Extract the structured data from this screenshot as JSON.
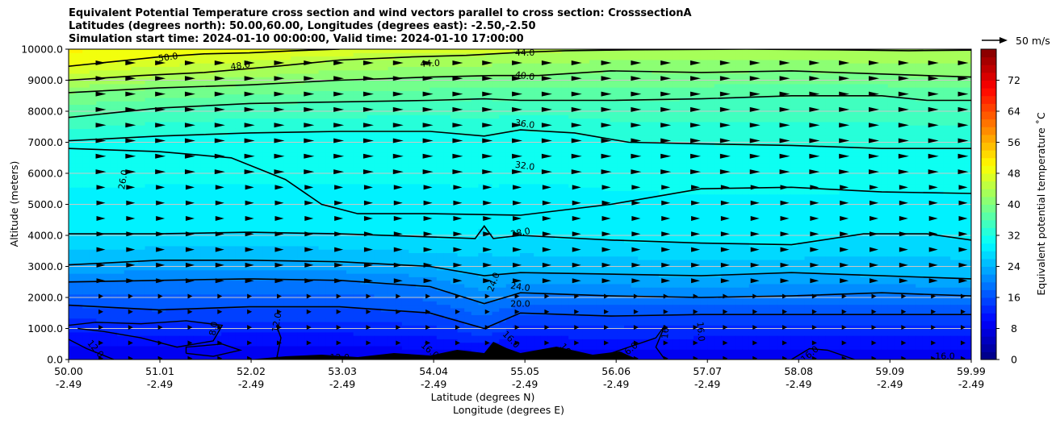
{
  "title_lines": [
    "Equivalent Potential Temperature cross section and wind vectors parallel to cross section: CrosssectionA",
    "Latitudes (degrees north): 50.00,60.00, Longitudes (degrees east): -2.50,-2.50",
    "Simulation start time: 2024-01-10 00:00:00, Valid time: 2024-01-10 17:00:00"
  ],
  "quiver_key_label": "50 m/s",
  "chart_data": {
    "type": "heatmap",
    "xlabel": "Latitude (degrees N)",
    "xlabel2": "Longitude (degrees E)",
    "ylabel": "Altitude (meters)",
    "ylim": [
      0,
      10000
    ],
    "yticks": [
      "0.0",
      "1000.0",
      "2000.0",
      "3000.0",
      "4000.0",
      "5000.0",
      "6000.0",
      "7000.0",
      "8000.0",
      "9000.0",
      "10000.0"
    ],
    "xticks": [
      {
        "lat": "50.00",
        "lon": "-2.49"
      },
      {
        "lat": "51.01",
        "lon": "-2.49"
      },
      {
        "lat": "52.02",
        "lon": "-2.49"
      },
      {
        "lat": "53.03",
        "lon": "-2.49"
      },
      {
        "lat": "54.04",
        "lon": "-2.49"
      },
      {
        "lat": "55.05",
        "lon": "-2.49"
      },
      {
        "lat": "56.06",
        "lon": "-2.49"
      },
      {
        "lat": "57.07",
        "lon": "-2.49"
      },
      {
        "lat": "58.08",
        "lon": "-2.49"
      },
      {
        "lat": "59.09",
        "lon": "-2.49"
      },
      {
        "lat": "59.99",
        "lon": "-2.49"
      }
    ],
    "colorbar": {
      "label": "Equivalent potential temperature $^\\circ$C",
      "label_display": "Equivalent potential temperature ˚C",
      "range": [
        0,
        80
      ],
      "ticks": [
        "0",
        "8",
        "16",
        "24",
        "32",
        "40",
        "48",
        "56",
        "64",
        "72"
      ],
      "colormap": "jet"
    },
    "contour_labels": [
      {
        "text": "50.0"
      },
      {
        "text": "48.0"
      },
      {
        "text": "44.0"
      },
      {
        "text": "44.0"
      },
      {
        "text": "40.0"
      },
      {
        "text": "36.0"
      },
      {
        "text": "32.0"
      },
      {
        "text": "28.0"
      },
      {
        "text": "26.0"
      },
      {
        "text": "24.0"
      },
      {
        "text": "24.0"
      },
      {
        "text": "20.0"
      },
      {
        "text": "16.0"
      },
      {
        "text": "16.0"
      },
      {
        "text": "16.0"
      },
      {
        "text": "16.0"
      },
      {
        "text": "16.0"
      },
      {
        "text": "12.0"
      },
      {
        "text": "12.0"
      },
      {
        "text": "12.0"
      },
      {
        "text": "8.0"
      },
      {
        "text": "16"
      },
      {
        "text": "16"
      },
      {
        "text": "16.0"
      }
    ],
    "contours": [
      {
        "level": 48,
        "points": [
          [
            50.0,
            9450
          ],
          [
            50.5,
            9600
          ],
          [
            51.0,
            9750
          ],
          [
            51.5,
            9850
          ],
          [
            52.0,
            9880
          ],
          [
            52.5,
            9950
          ],
          [
            53.0,
            10000
          ]
        ]
      },
      {
        "level": 44,
        "points": [
          [
            50.0,
            9000
          ],
          [
            50.8,
            9150
          ],
          [
            51.5,
            9250
          ],
          [
            52.3,
            9450
          ],
          [
            53.0,
            9650
          ],
          [
            53.8,
            9750
          ],
          [
            54.4,
            9800
          ],
          [
            55.0,
            9900
          ],
          [
            55.5,
            9950
          ],
          [
            56.2,
            9980
          ],
          [
            57.5,
            10000
          ],
          [
            58.5,
            9980
          ],
          [
            59.3,
            9950
          ],
          [
            59.99,
            9970
          ]
        ]
      },
      {
        "level": 40,
        "points": [
          [
            50.0,
            8600
          ],
          [
            51.0,
            8750
          ],
          [
            52.0,
            8850
          ],
          [
            53.0,
            9000
          ],
          [
            54.0,
            9100
          ],
          [
            54.7,
            9150
          ],
          [
            55.2,
            9150
          ],
          [
            56.0,
            9300
          ],
          [
            57.0,
            9250
          ],
          [
            58.0,
            9300
          ],
          [
            59.0,
            9200
          ],
          [
            59.99,
            9100
          ]
        ]
      },
      {
        "level": 36,
        "points": [
          [
            50.0,
            7800
          ],
          [
            51.0,
            8100
          ],
          [
            52.0,
            8250
          ],
          [
            53.0,
            8300
          ],
          [
            54.0,
            8350
          ],
          [
            54.6,
            8400
          ],
          [
            55.0,
            8350
          ],
          [
            56.0,
            8350
          ],
          [
            57.0,
            8400
          ],
          [
            58.0,
            8500
          ],
          [
            59.0,
            8500
          ],
          [
            59.5,
            8350
          ],
          [
            59.99,
            8350
          ]
        ]
      },
      {
        "level": 32,
        "points": [
          [
            50.0,
            7050
          ],
          [
            51.0,
            7200
          ],
          [
            52.0,
            7300
          ],
          [
            53.0,
            7350
          ],
          [
            54.0,
            7350
          ],
          [
            54.6,
            7200
          ],
          [
            55.0,
            7400
          ],
          [
            55.6,
            7300
          ],
          [
            56.2,
            7000
          ],
          [
            57.0,
            6950
          ],
          [
            58.0,
            6900
          ],
          [
            59.0,
            6800
          ],
          [
            59.99,
            6800
          ]
        ]
      },
      {
        "level": 28,
        "points": [
          [
            50.0,
            4050
          ],
          [
            51.0,
            4050
          ],
          [
            52.0,
            4100
          ],
          [
            53.0,
            4050
          ],
          [
            54.0,
            3950
          ],
          [
            54.5,
            3900
          ],
          [
            54.6,
            4300
          ],
          [
            54.7,
            3900
          ],
          [
            55.0,
            4000
          ],
          [
            56.0,
            3850
          ],
          [
            57.0,
            3750
          ],
          [
            58.0,
            3700
          ],
          [
            58.8,
            4050
          ],
          [
            59.5,
            4050
          ],
          [
            59.99,
            3850
          ]
        ]
      },
      {
        "level": 26,
        "points": [
          [
            50.0,
            6800
          ],
          [
            51.0,
            6700
          ],
          [
            51.8,
            6500
          ],
          [
            52.4,
            5800
          ],
          [
            52.8,
            5000
          ],
          [
            53.2,
            4700
          ],
          [
            54.0,
            4700
          ],
          [
            55.0,
            4650
          ],
          [
            56.0,
            5000
          ],
          [
            57.0,
            5500
          ],
          [
            58.0,
            5550
          ],
          [
            59.0,
            5400
          ],
          [
            59.99,
            5350
          ]
        ]
      },
      {
        "level": 24,
        "points": [
          [
            50.0,
            3050
          ],
          [
            51.0,
            3200
          ],
          [
            52.0,
            3200
          ],
          [
            53.0,
            3150
          ],
          [
            54.0,
            3000
          ],
          [
            54.6,
            2700
          ],
          [
            55.0,
            2800
          ],
          [
            56.0,
            2750
          ],
          [
            57.0,
            2700
          ],
          [
            58.0,
            2800
          ],
          [
            59.0,
            2700
          ],
          [
            59.99,
            2600
          ]
        ]
      },
      {
        "level": 20,
        "points": [
          [
            50.0,
            2500
          ],
          [
            51.0,
            2550
          ],
          [
            52.0,
            2600
          ],
          [
            53.0,
            2550
          ],
          [
            54.0,
            2350
          ],
          [
            54.6,
            1800
          ],
          [
            55.0,
            2150
          ],
          [
            56.0,
            2050
          ],
          [
            57.0,
            2000
          ],
          [
            58.0,
            2050
          ],
          [
            59.0,
            2150
          ],
          [
            59.99,
            2050
          ]
        ]
      },
      {
        "level": 16,
        "points": [
          [
            50.0,
            1750
          ],
          [
            51.0,
            1600
          ],
          [
            52.0,
            1700
          ],
          [
            53.0,
            1700
          ],
          [
            54.0,
            1500
          ],
          [
            54.6,
            1000
          ],
          [
            55.0,
            1500
          ],
          [
            56.0,
            1400
          ],
          [
            57.0,
            1450
          ],
          [
            58.0,
            1450
          ],
          [
            59.0,
            1450
          ],
          [
            59.99,
            1450
          ]
        ]
      }
    ]
  }
}
